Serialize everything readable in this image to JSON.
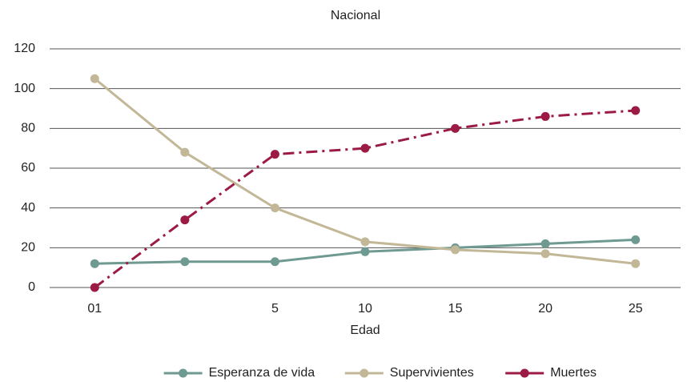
{
  "chart_data": {
    "type": "line",
    "title": "Nacional",
    "x_label": "Edad",
    "categories": [
      "01",
      null,
      "5",
      "10",
      "15",
      "20",
      "25"
    ],
    "series": [
      {
        "name": "Esperanza de vida",
        "color": "#6f9a92",
        "line_style": "solid",
        "values": [
          12,
          13,
          13,
          18,
          20,
          22,
          24
        ]
      },
      {
        "name": "Supervivientes",
        "color": "#c2b898",
        "line_style": "solid",
        "values": [
          105,
          68,
          40,
          23,
          19,
          17,
          12
        ]
      },
      {
        "name": "Muertes",
        "color": "#9b1b45",
        "line_style": "dashdot",
        "values": [
          0,
          34,
          67,
          70,
          80,
          86,
          89
        ]
      }
    ],
    "ylim": [
      0,
      120
    ],
    "yticks": [
      0,
      20,
      40,
      60,
      80,
      100,
      120
    ],
    "grid": true,
    "legend": "bottom"
  }
}
